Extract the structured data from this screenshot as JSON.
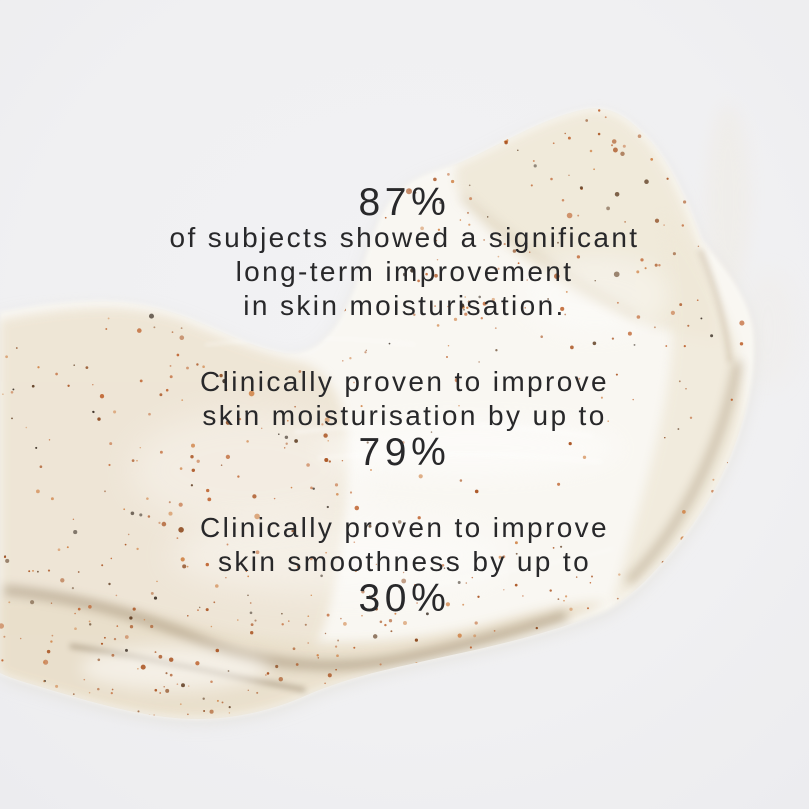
{
  "image": {
    "description": "Close-up photo of a beige exfoliating cream smear with rust-coloured speckles on a light grey background, overlaid with clinical claim statistics"
  },
  "stats": [
    {
      "value": "87%",
      "value_position": "above",
      "lines": [
        "of subjects showed a significant",
        "long-term improvement",
        "in skin moisturisation."
      ]
    },
    {
      "value": "79%",
      "value_position": "below",
      "lines": [
        "Clinically proven to improve",
        "skin moisturisation by up to"
      ]
    },
    {
      "value": "30%",
      "value_position": "below",
      "lines": [
        "Clinically proven to improve",
        "skin smoothness by up to"
      ]
    }
  ],
  "colors": {
    "background": "#f0f0f2",
    "text": "#28282a",
    "cream_base": "#fbf9f4",
    "cream_left": "#ede4d3",
    "cream_lobe": "#efe8d8",
    "cream_bottom": "#e9dfcb",
    "ridge_dark": "#8f7a5d",
    "speckles": [
      "#bf6430",
      "#a8501d",
      "#d08347",
      "#8a4519",
      "#5f3d22",
      "#3a2e24"
    ],
    "speckle_weights": [
      0.3,
      0.25,
      0.2,
      0.1,
      0.08,
      0.07
    ]
  }
}
